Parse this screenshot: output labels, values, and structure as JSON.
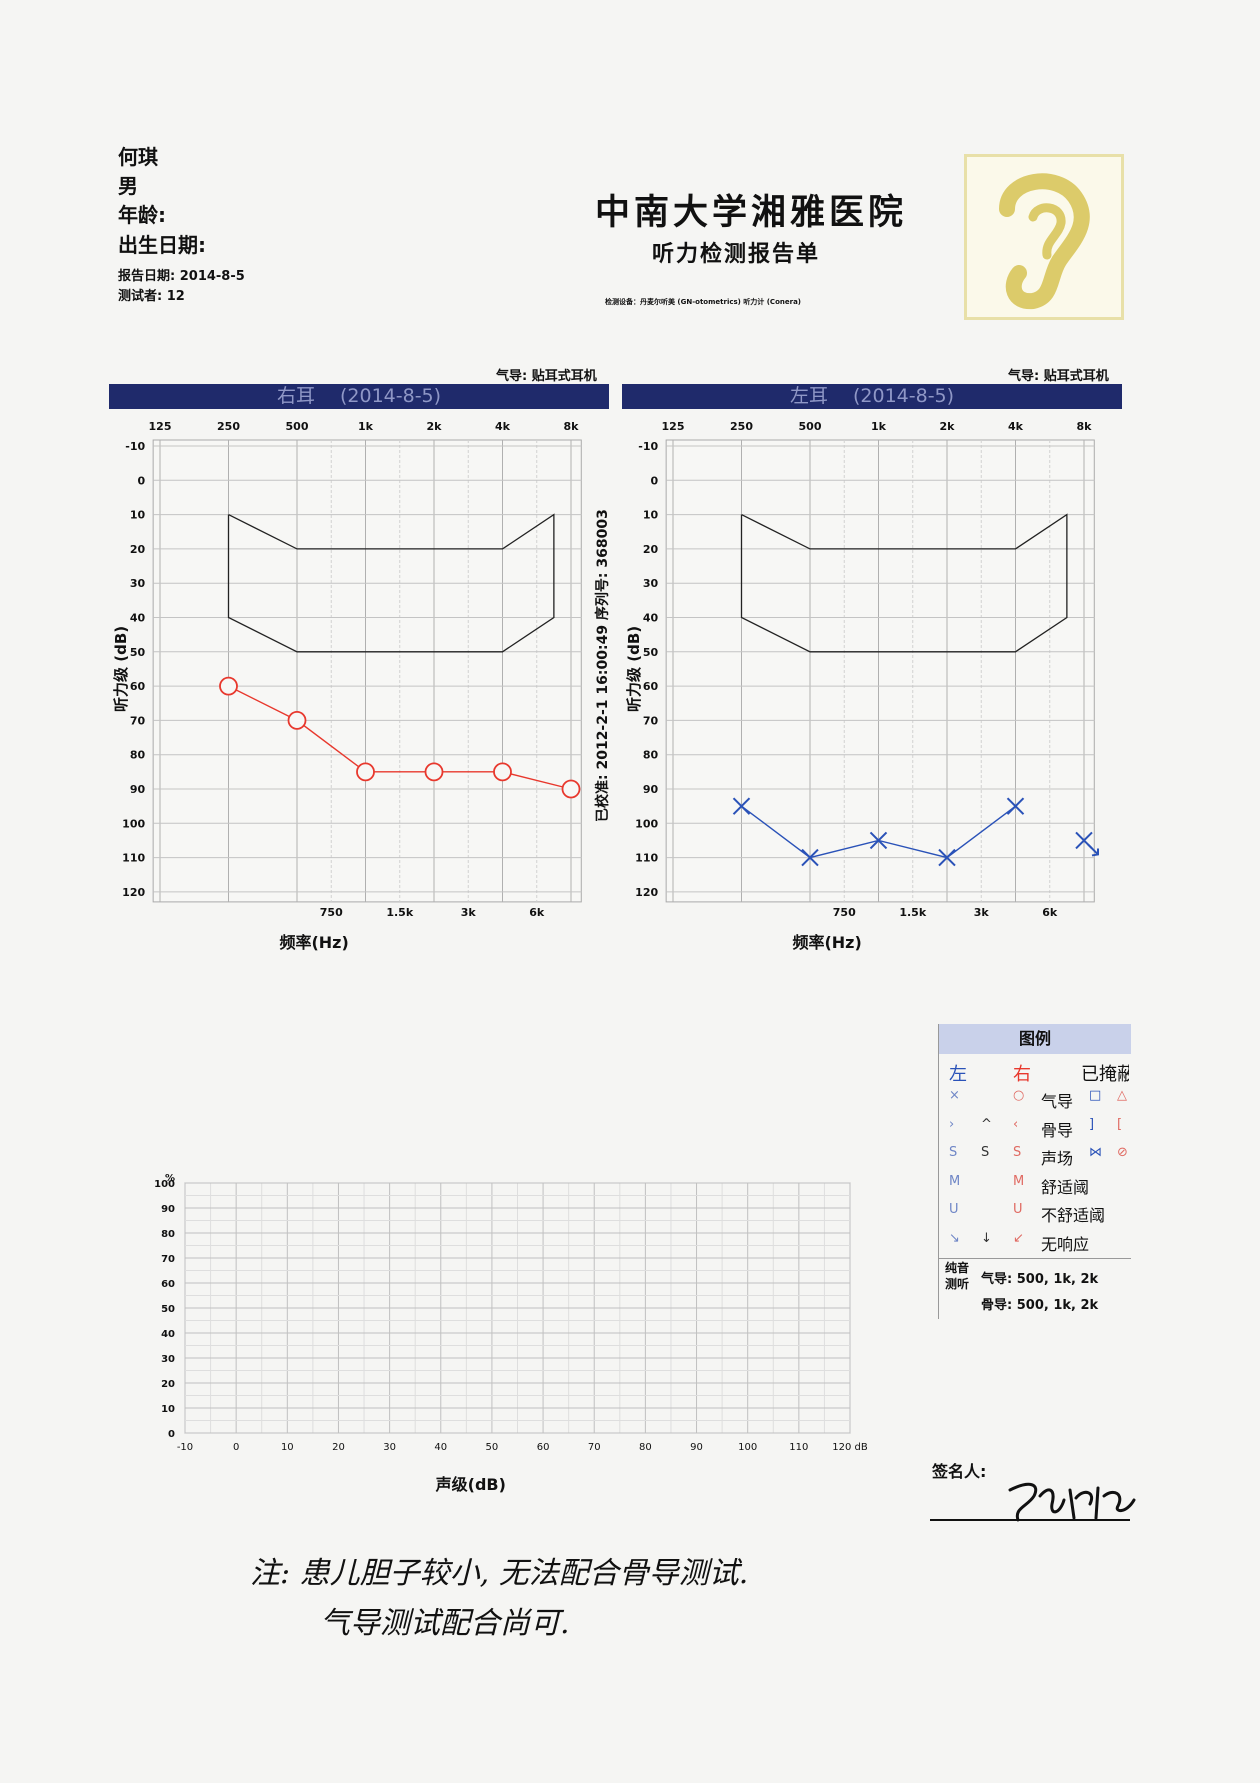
{
  "patient": {
    "name": "何琪",
    "sex": "男",
    "age_label": "年龄:",
    "dob_label": "出生日期:",
    "report_date": "报告日期: 2014-8-5",
    "tester": "测试者: 12"
  },
  "report": {
    "hospital": "中南大学湘雅医院",
    "title": "听力检测报告单",
    "device": "检测设备：丹麦尔听美 (GN-otometrics) 听力计 (Conera)"
  },
  "right_ear": {
    "transducer": "气导: 贴耳式耳机",
    "band": "右耳　 (2014-8-5)"
  },
  "left_ear": {
    "transducer": "气导: 贴耳式耳机",
    "band": "左耳　 (2014-8-5)"
  },
  "calibration": "已校准: 2012-2-1 16:00:49 序列号: 368003",
  "colors": {
    "right": "#e8382d",
    "left": "#2a52b8",
    "band": "#1f2a6b",
    "grid": "#b8b8b8"
  },
  "chart_data": [
    {
      "type": "line",
      "title": "右耳　 (2014-8-5)",
      "xlabel": "频率(Hz)",
      "ylabel": "听力级 (dB)",
      "x_ticks_top": [
        "125",
        "250",
        "500",
        "1k",
        "2k",
        "4k",
        "8k"
      ],
      "x_ticks_bottom": [
        "750",
        "1.5k",
        "3k",
        "6k"
      ],
      "y_ticks": [
        "-10",
        "0",
        "10",
        "20",
        "30",
        "40",
        "50",
        "60",
        "70",
        "80",
        "90",
        "100",
        "110",
        "120"
      ],
      "ylim": [
        -10,
        120
      ],
      "y_inverted": true,
      "grid": true,
      "series": [
        {
          "marker": "O",
          "x": [
            "250",
            "500",
            "1k",
            "2k",
            "4k",
            "8k"
          ],
          "values": [
            60,
            70,
            85,
            85,
            85,
            90
          ]
        }
      ]
    },
    {
      "type": "line",
      "title": "左耳　 (2014-8-5)",
      "xlabel": "频率(Hz)",
      "ylabel": "听力级 (dB)",
      "x_ticks_top": [
        "125",
        "250",
        "500",
        "1k",
        "2k",
        "4k",
        "8k"
      ],
      "x_ticks_bottom": [
        "750",
        "1.5k",
        "3k",
        "6k"
      ],
      "y_ticks": [
        "-10",
        "0",
        "10",
        "20",
        "30",
        "40",
        "50",
        "60",
        "70",
        "80",
        "90",
        "100",
        "110",
        "120"
      ],
      "ylim": [
        -10,
        120
      ],
      "y_inverted": true,
      "grid": true,
      "series": [
        {
          "marker": "X",
          "x": [
            "250",
            "500",
            "1k",
            "2k",
            "4k"
          ],
          "values": [
            95,
            110,
            105,
            110,
            95
          ]
        },
        {
          "marker": "X-no-response",
          "x": [
            "8k"
          ],
          "values": [
            105
          ]
        }
      ]
    },
    {
      "type": "line",
      "xlabel": "声级(dB)",
      "y_unit": "%",
      "x_ticks": [
        "-10",
        "0",
        "10",
        "20",
        "30",
        "40",
        "50",
        "60",
        "70",
        "80",
        "90",
        "100",
        "110",
        "120 dB"
      ],
      "y_ticks": [
        "0",
        "10",
        "20",
        "30",
        "40",
        "50",
        "60",
        "70",
        "80",
        "90",
        "100"
      ],
      "xlim": [
        -10,
        120
      ],
      "ylim": [
        0,
        100
      ],
      "grid": true,
      "series": []
    }
  ],
  "legend": {
    "title": "图例",
    "col_left": "左",
    "col_right": "右",
    "col_masked": "已掩蔽",
    "rows": [
      {
        "left": "×",
        "right": "○",
        "label": "气导",
        "masked_l": "□",
        "masked_r": "△"
      },
      {
        "left": "›",
        "mid": "^",
        "right": "‹",
        "label": "骨导",
        "masked_l": "]",
        "masked_r": "["
      },
      {
        "left": "S",
        "mid": "S",
        "right": "S",
        "label": "声场",
        "masked_l": "⋈",
        "masked_r": "⊘"
      },
      {
        "left": "M",
        "right": "M",
        "label": "舒适阈"
      },
      {
        "left": "U",
        "right": "U",
        "label": "不舒适阈"
      },
      {
        "left": "↘",
        "mid": "↓",
        "right": "↙",
        "label": "无响应"
      }
    ],
    "pta_label": "纯音测听",
    "pta_air": "气导: 500, 1k, 2k",
    "pta_bone": "骨导: 500, 1k, 2k"
  },
  "signature_label": "签名人:",
  "note_line1": "注: 患儿胆子较小, 无法配合骨导测试.",
  "note_line2": "气导测试配合尚可."
}
